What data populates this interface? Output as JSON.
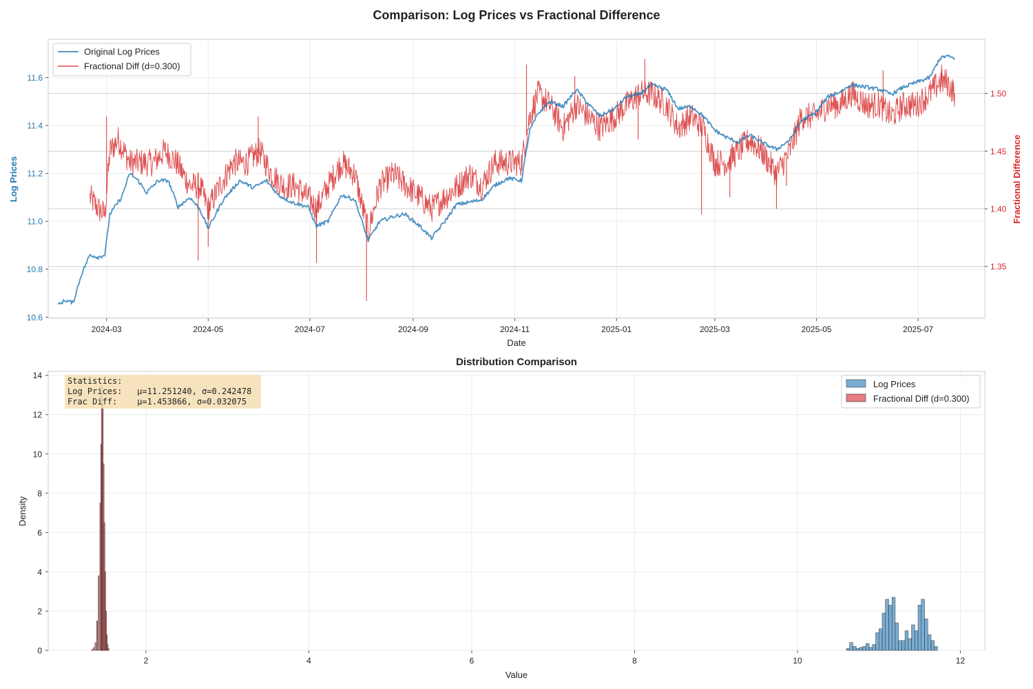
{
  "figure_title": "Comparison: Log Prices vs Fractional Difference",
  "colors": {
    "log_prices": "#1f77b4",
    "frac_diff": "#d62728",
    "grid": "#ebebeb",
    "spine": "#cccccc",
    "stats_box": "#f5deb3"
  },
  "chart_data": [
    {
      "type": "line",
      "title": "",
      "xlabel": "Date",
      "ylabel": "Log Prices",
      "y2label": "Fractional Difference",
      "x_ticks": [
        "2024-03",
        "2024-05",
        "2024-07",
        "2024-09",
        "2024-11",
        "2025-01",
        "2025-03",
        "2025-05",
        "2025-07"
      ],
      "x_range": [
        "2024-01-26",
        "2025-08-10"
      ],
      "y_ticks": [
        "10.6",
        "10.8",
        "11.0",
        "11.2",
        "11.4",
        "11.6"
      ],
      "ylim": [
        10.595,
        11.76
      ],
      "y2_ticks": [
        "1.35",
        "1.40",
        "1.45",
        "1.50"
      ],
      "y2lim": [
        1.305,
        1.547
      ],
      "legend_position": "top-left",
      "grid": true,
      "series": [
        {
          "name": "Original Log Prices",
          "axis": "left",
          "color": "#1f77b4",
          "points": [
            [
              "2024-02-01",
              10.65
            ],
            [
              "2024-02-05",
              10.67
            ],
            [
              "2024-02-10",
              10.66
            ],
            [
              "2024-02-15",
              10.78
            ],
            [
              "2024-02-20",
              10.86
            ],
            [
              "2024-02-25",
              10.85
            ],
            [
              "2024-02-29",
              10.86
            ],
            [
              "2024-03-03",
              11.03
            ],
            [
              "2024-03-10",
              11.1
            ],
            [
              "2024-03-15",
              11.2
            ],
            [
              "2024-03-20",
              11.17
            ],
            [
              "2024-03-25",
              11.12
            ],
            [
              "2024-04-01",
              11.17
            ],
            [
              "2024-04-07",
              11.17
            ],
            [
              "2024-04-13",
              11.06
            ],
            [
              "2024-04-20",
              11.1
            ],
            [
              "2024-04-26",
              11.05
            ],
            [
              "2024-05-01",
              10.97
            ],
            [
              "2024-05-10",
              11.09
            ],
            [
              "2024-05-20",
              11.17
            ],
            [
              "2024-05-28",
              11.14
            ],
            [
              "2024-06-05",
              11.17
            ],
            [
              "2024-06-12",
              11.11
            ],
            [
              "2024-06-20",
              11.08
            ],
            [
              "2024-06-30",
              11.06
            ],
            [
              "2024-07-05",
              10.98
            ],
            [
              "2024-07-12",
              11.0
            ],
            [
              "2024-07-20",
              11.11
            ],
            [
              "2024-07-28",
              11.09
            ],
            [
              "2024-08-05",
              10.92
            ],
            [
              "2024-08-12",
              11.0
            ],
            [
              "2024-08-20",
              11.02
            ],
            [
              "2024-08-27",
              11.03
            ],
            [
              "2024-09-05",
              10.98
            ],
            [
              "2024-09-12",
              10.93
            ],
            [
              "2024-09-20",
              11.0
            ],
            [
              "2024-09-27",
              11.07
            ],
            [
              "2024-10-05",
              11.08
            ],
            [
              "2024-10-12",
              11.09
            ],
            [
              "2024-10-20",
              11.15
            ],
            [
              "2024-10-28",
              11.18
            ],
            [
              "2024-11-05",
              11.17
            ],
            [
              "2024-11-10",
              11.38
            ],
            [
              "2024-11-15",
              11.45
            ],
            [
              "2024-11-22",
              11.5
            ],
            [
              "2024-11-30",
              11.48
            ],
            [
              "2024-12-08",
              11.55
            ],
            [
              "2024-12-15",
              11.49
            ],
            [
              "2024-12-22",
              11.44
            ],
            [
              "2024-12-31",
              11.47
            ],
            [
              "2025-01-07",
              11.52
            ],
            [
              "2025-01-15",
              11.53
            ],
            [
              "2025-01-22",
              11.57
            ],
            [
              "2025-01-31",
              11.55
            ],
            [
              "2025-02-07",
              11.47
            ],
            [
              "2025-02-15",
              11.48
            ],
            [
              "2025-02-22",
              11.44
            ],
            [
              "2025-03-01",
              11.38
            ],
            [
              "2025-03-08",
              11.35
            ],
            [
              "2025-03-15",
              11.33
            ],
            [
              "2025-03-22",
              11.36
            ],
            [
              "2025-03-29",
              11.33
            ],
            [
              "2025-04-07",
              11.3
            ],
            [
              "2025-04-15",
              11.34
            ],
            [
              "2025-04-22",
              11.42
            ],
            [
              "2025-04-30",
              11.45
            ],
            [
              "2025-05-08",
              11.52
            ],
            [
              "2025-05-15",
              11.54
            ],
            [
              "2025-05-22",
              11.57
            ],
            [
              "2025-05-31",
              11.56
            ],
            [
              "2025-06-08",
              11.55
            ],
            [
              "2025-06-15",
              11.53
            ],
            [
              "2025-06-22",
              11.56
            ],
            [
              "2025-06-30",
              11.58
            ],
            [
              "2025-07-08",
              11.6
            ],
            [
              "2025-07-14",
              11.68
            ],
            [
              "2025-07-18",
              11.69
            ],
            [
              "2025-07-23",
              11.68
            ]
          ]
        },
        {
          "name": "Fractional Diff (d=0.300)",
          "axis": "right",
          "color": "#d62728",
          "points": [
            [
              "2024-02-20",
              1.41
            ],
            [
              "2024-02-25",
              1.4
            ],
            [
              "2024-02-29",
              1.395
            ],
            [
              "2024-03-03",
              1.45
            ],
            [
              "2024-03-08",
              1.46
            ],
            [
              "2024-03-15",
              1.44
            ],
            [
              "2024-03-22",
              1.44
            ],
            [
              "2024-03-29",
              1.44
            ],
            [
              "2024-04-05",
              1.45
            ],
            [
              "2024-04-12",
              1.44
            ],
            [
              "2024-04-20",
              1.42
            ],
            [
              "2024-04-26",
              1.42
            ],
            [
              "2024-05-01",
              1.4
            ],
            [
              "2024-05-08",
              1.42
            ],
            [
              "2024-05-16",
              1.44
            ],
            [
              "2024-05-24",
              1.44
            ],
            [
              "2024-06-01",
              1.45
            ],
            [
              "2024-06-08",
              1.43
            ],
            [
              "2024-06-15",
              1.42
            ],
            [
              "2024-06-22",
              1.42
            ],
            [
              "2024-06-30",
              1.41
            ],
            [
              "2024-07-05",
              1.4
            ],
            [
              "2024-07-12",
              1.42
            ],
            [
              "2024-07-20",
              1.44
            ],
            [
              "2024-07-28",
              1.43
            ],
            [
              "2024-08-05",
              1.38
            ],
            [
              "2024-08-12",
              1.42
            ],
            [
              "2024-08-20",
              1.43
            ],
            [
              "2024-08-28",
              1.42
            ],
            [
              "2024-09-05",
              1.41
            ],
            [
              "2024-09-12",
              1.4
            ],
            [
              "2024-09-20",
              1.41
            ],
            [
              "2024-09-28",
              1.42
            ],
            [
              "2024-10-05",
              1.43
            ],
            [
              "2024-10-12",
              1.42
            ],
            [
              "2024-10-20",
              1.44
            ],
            [
              "2024-10-28",
              1.44
            ],
            [
              "2024-11-05",
              1.44
            ],
            [
              "2024-11-10",
              1.48
            ],
            [
              "2024-11-15",
              1.5
            ],
            [
              "2024-11-22",
              1.49
            ],
            [
              "2024-11-30",
              1.47
            ],
            [
              "2024-12-08",
              1.49
            ],
            [
              "2024-12-15",
              1.48
            ],
            [
              "2024-12-22",
              1.47
            ],
            [
              "2024-12-31",
              1.48
            ],
            [
              "2025-01-07",
              1.49
            ],
            [
              "2025-01-15",
              1.5
            ],
            [
              "2025-01-22",
              1.5
            ],
            [
              "2025-01-31",
              1.49
            ],
            [
              "2025-02-07",
              1.47
            ],
            [
              "2025-02-15",
              1.48
            ],
            [
              "2025-02-22",
              1.47
            ],
            [
              "2025-03-01",
              1.44
            ],
            [
              "2025-03-08",
              1.44
            ],
            [
              "2025-03-15",
              1.45
            ],
            [
              "2025-03-22",
              1.46
            ],
            [
              "2025-03-29",
              1.45
            ],
            [
              "2025-04-07",
              1.43
            ],
            [
              "2025-04-15",
              1.45
            ],
            [
              "2025-04-22",
              1.48
            ],
            [
              "2025-04-30",
              1.48
            ],
            [
              "2025-05-08",
              1.49
            ],
            [
              "2025-05-15",
              1.49
            ],
            [
              "2025-05-22",
              1.5
            ],
            [
              "2025-05-31",
              1.49
            ],
            [
              "2025-06-08",
              1.49
            ],
            [
              "2025-06-15",
              1.48
            ],
            [
              "2025-06-22",
              1.49
            ],
            [
              "2025-06-30",
              1.49
            ],
            [
              "2025-07-08",
              1.5
            ],
            [
              "2025-07-14",
              1.51
            ],
            [
              "2025-07-18",
              1.51
            ],
            [
              "2025-07-23",
              1.5
            ]
          ],
          "spikes": [
            [
              "2024-03-01",
              1.48
            ],
            [
              "2024-04-25",
              1.355
            ],
            [
              "2024-05-01",
              1.367
            ],
            [
              "2024-05-31",
              1.48
            ],
            [
              "2024-07-05",
              1.353
            ],
            [
              "2024-08-04",
              1.32
            ],
            [
              "2024-11-08",
              1.525
            ],
            [
              "2024-12-07",
              1.515
            ],
            [
              "2025-01-14",
              1.46
            ],
            [
              "2025-01-18",
              1.53
            ],
            [
              "2025-02-21",
              1.395
            ],
            [
              "2025-03-10",
              1.41
            ],
            [
              "2025-04-07",
              1.4
            ],
            [
              "2025-04-13",
              1.42
            ],
            [
              "2025-06-10",
              1.52
            ],
            [
              "2025-07-15",
              1.525
            ]
          ]
        }
      ]
    },
    {
      "type": "histogram",
      "title": "Distribution Comparison",
      "xlabel": "Value",
      "ylabel": "Density",
      "x_ticks": [
        "2",
        "4",
        "6",
        "8",
        "10",
        "12"
      ],
      "xlim": [
        0.8,
        12.3
      ],
      "y_ticks": [
        "0",
        "2",
        "4",
        "6",
        "8",
        "10",
        "12",
        "14"
      ],
      "ylim": [
        0,
        14.2
      ],
      "legend_position": "top-right",
      "grid": true,
      "series": [
        {
          "name": "Log Prices",
          "color": "#1f77b4",
          "bins": [
            [
              10.62,
              0.1
            ],
            [
              10.66,
              0.4
            ],
            [
              10.7,
              0.2
            ],
            [
              10.74,
              0.1
            ],
            [
              10.78,
              0.15
            ],
            [
              10.82,
              0.2
            ],
            [
              10.86,
              0.35
            ],
            [
              10.9,
              0.15
            ],
            [
              10.94,
              0.3
            ],
            [
              10.98,
              0.9
            ],
            [
              11.02,
              1.1
            ],
            [
              11.06,
              1.9
            ],
            [
              11.1,
              2.6
            ],
            [
              11.14,
              2.3
            ],
            [
              11.18,
              2.7
            ],
            [
              11.22,
              1.4
            ],
            [
              11.26,
              0.5
            ],
            [
              11.3,
              0.5
            ],
            [
              11.34,
              1.0
            ],
            [
              11.38,
              0.6
            ],
            [
              11.42,
              1.3
            ],
            [
              11.46,
              1.0
            ],
            [
              11.5,
              2.3
            ],
            [
              11.54,
              2.6
            ],
            [
              11.58,
              1.6
            ],
            [
              11.62,
              0.8
            ],
            [
              11.66,
              0.5
            ],
            [
              11.7,
              0.2
            ]
          ]
        },
        {
          "name": "Fractional Diff (d=0.300)",
          "color": "#d62728",
          "bins": [
            [
              1.34,
              0.05
            ],
            [
              1.36,
              0.15
            ],
            [
              1.38,
              0.4
            ],
            [
              1.4,
              1.5
            ],
            [
              1.42,
              3.8
            ],
            [
              1.44,
              7.5
            ],
            [
              1.45,
              10.5
            ],
            [
              1.46,
              13.5
            ],
            [
              1.47,
              12.5
            ],
            [
              1.48,
              9.5
            ],
            [
              1.49,
              6.5
            ],
            [
              1.5,
              4.0
            ],
            [
              1.51,
              2.0
            ],
            [
              1.52,
              0.8
            ],
            [
              1.53,
              0.3
            ],
            [
              1.54,
              0.1
            ]
          ]
        }
      ],
      "stats_box": {
        "line1": "Statistics:",
        "line2": "Log Prices:   μ=11.251240, σ=0.242478",
        "line3": "Frac Diff:    μ=1.453866, σ=0.032075"
      }
    }
  ]
}
